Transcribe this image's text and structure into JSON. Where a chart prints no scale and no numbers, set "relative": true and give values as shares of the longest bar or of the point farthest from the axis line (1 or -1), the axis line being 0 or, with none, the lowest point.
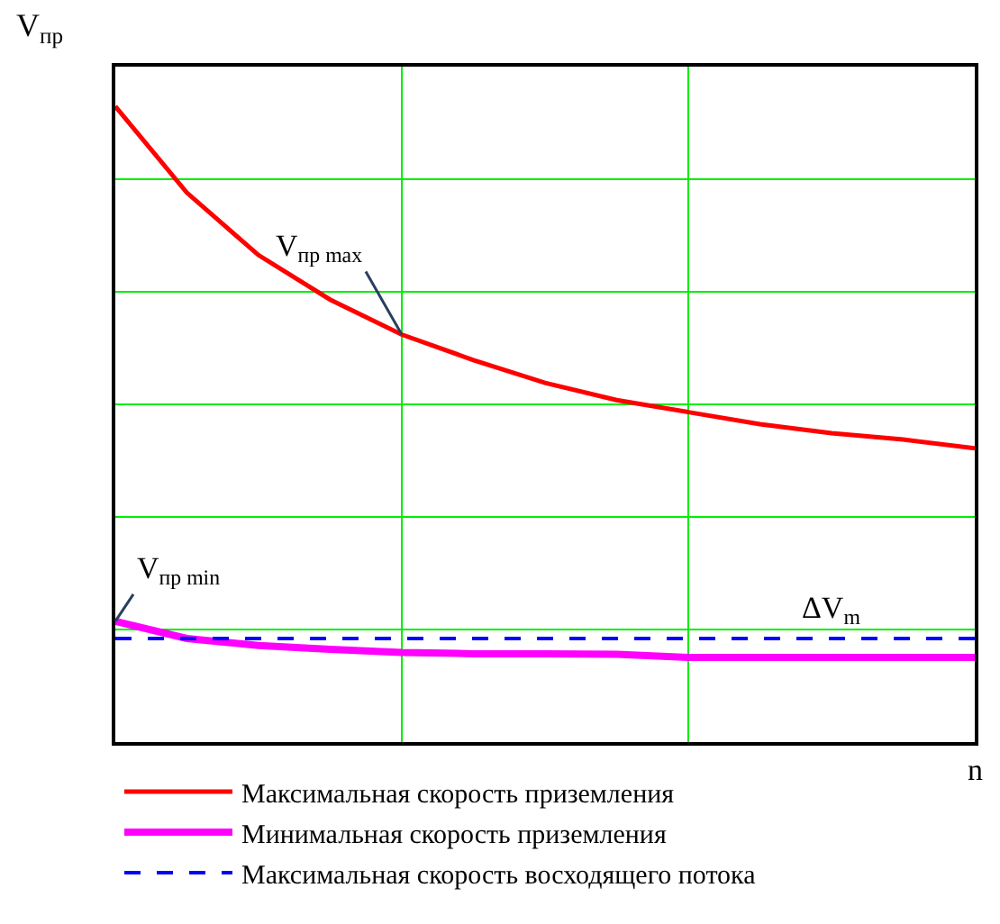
{
  "chart_data": {
    "type": "line",
    "relative": true,
    "xlabel": "n",
    "ylabel": "V$_{пр}$",
    "categories": [
      null,
      null,
      null,
      null,
      null,
      null,
      null,
      null,
      null,
      null,
      null,
      null,
      null
    ],
    "series": [
      {
        "name": "Максимальная скорость приземления",
        "color": "#ff0000",
        "line_style": "solid",
        "values": [
          1,
          0.864,
          0.766,
          0.696,
          0.641,
          0.601,
          0.565,
          0.538,
          0.519,
          0.5,
          0.486,
          0.476,
          0.462
        ]
      },
      {
        "name": "Минимальная скорость приземления",
        "color": "#ff00ff",
        "line_style": "solid",
        "values": [
          0.19,
          0.163,
          0.152,
          0.146,
          0.141,
          0.139,
          0.139,
          0.138,
          0.133,
          0.133,
          0.133,
          0.133,
          0.133
        ]
      },
      {
        "name": "Максимальная скорость восходящего потока",
        "color": "#0000ff",
        "line_style": "dashed",
        "values": [
          0.163,
          0.163,
          0.163,
          0.163,
          0.163,
          0.163,
          0.163,
          0.163,
          0.163,
          0.163,
          0.163,
          0.163,
          0.163
        ]
      }
    ],
    "annotations": [
      "V$_{пр max}$",
      "V$_{пр min}$",
      "ΔV$_{m}$"
    ],
    "grid": true,
    "legend": "bottom",
    "marker": "none"
  }
}
